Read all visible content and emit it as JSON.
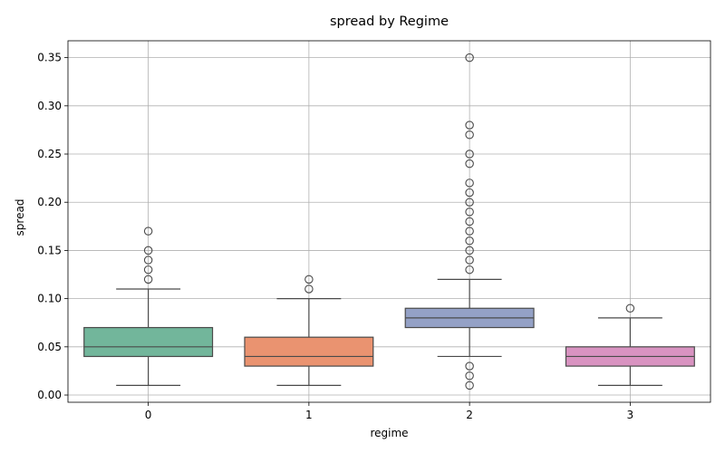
{
  "chart_data": {
    "type": "box",
    "title": "spread by Regime",
    "xlabel": "regime",
    "ylabel": "spread",
    "categories": [
      "0",
      "1",
      "2",
      "3"
    ],
    "ylim": [
      -0.0075,
      0.3675
    ],
    "yticks": [
      0.0,
      0.05,
      0.1,
      0.15,
      0.2,
      0.25,
      0.3,
      0.35
    ],
    "ytick_labels": [
      "0.00",
      "0.05",
      "0.10",
      "0.15",
      "0.20",
      "0.25",
      "0.30",
      "0.35"
    ],
    "grid": true,
    "boxes": [
      {
        "category": "0",
        "color": "#72b69b",
        "whisker_low": 0.01,
        "q1": 0.04,
        "median": 0.05,
        "q3": 0.07,
        "whisker_high": 0.11,
        "outliers": [
          0.12,
          0.13,
          0.14,
          0.15,
          0.17
        ]
      },
      {
        "category": "1",
        "color": "#ea9370",
        "whisker_low": 0.01,
        "q1": 0.03,
        "median": 0.04,
        "q3": 0.06,
        "whisker_high": 0.1,
        "outliers": [
          0.11,
          0.12
        ]
      },
      {
        "category": "2",
        "color": "#94a1c6",
        "whisker_low": 0.04,
        "q1": 0.07,
        "median": 0.08,
        "q3": 0.09,
        "whisker_high": 0.12,
        "outliers": [
          0.01,
          0.02,
          0.03,
          0.13,
          0.14,
          0.15,
          0.16,
          0.17,
          0.18,
          0.19,
          0.2,
          0.21,
          0.22,
          0.24,
          0.25,
          0.27,
          0.28,
          0.35
        ]
      },
      {
        "category": "3",
        "color": "#d993c1",
        "whisker_low": 0.01,
        "q1": 0.03,
        "median": 0.04,
        "q3": 0.05,
        "whisker_high": 0.08,
        "outliers": [
          0.09
        ]
      }
    ]
  }
}
